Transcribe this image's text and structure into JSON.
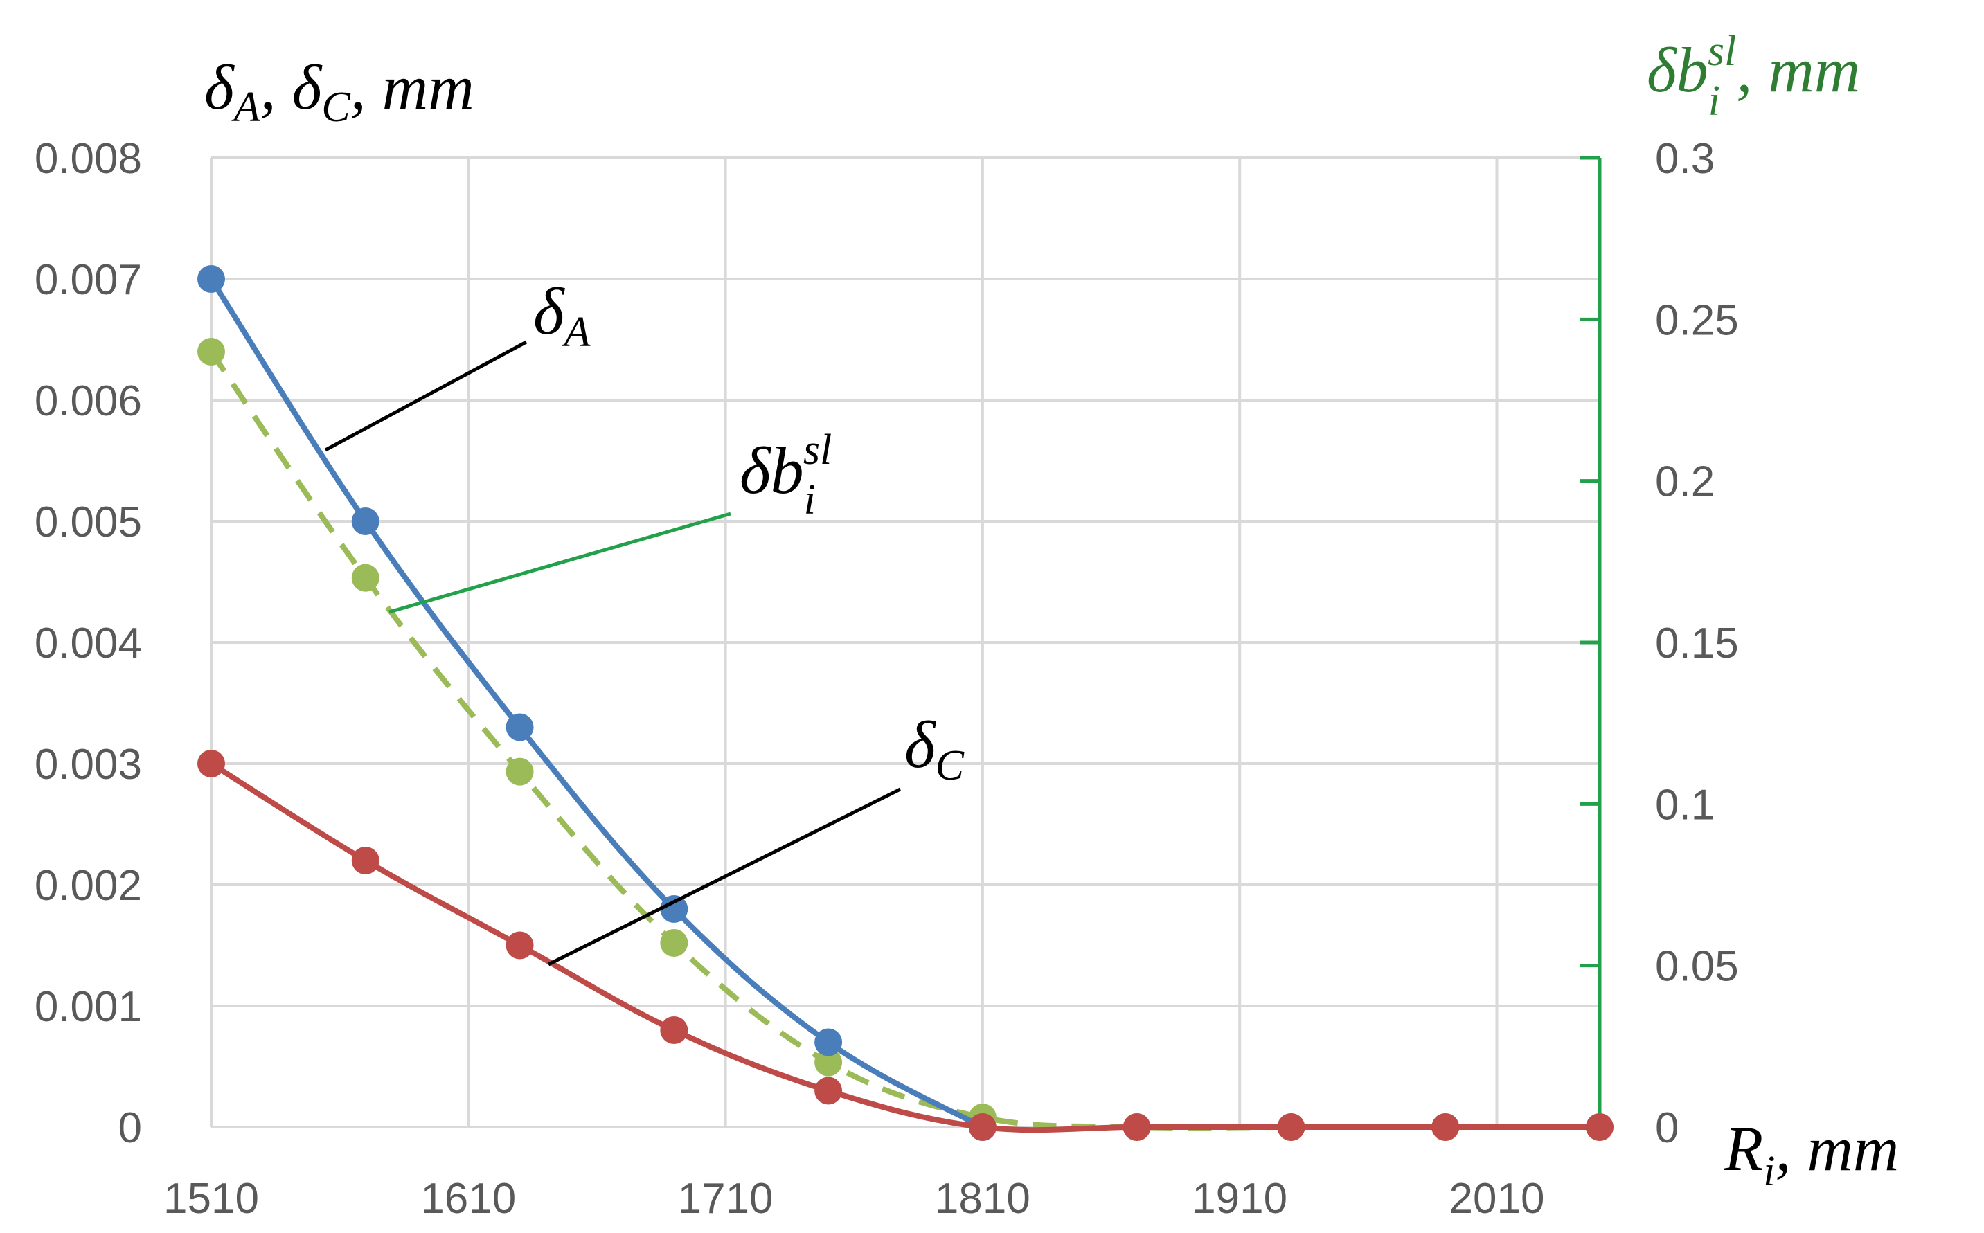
{
  "chart_data": {
    "type": "line",
    "x": [
      1510,
      1570,
      1630,
      1690,
      1750,
      1810,
      1870,
      1930,
      1990,
      2050
    ],
    "xticks": [
      "1510",
      "1610",
      "1710",
      "1810",
      "1910",
      "2010"
    ],
    "xtick_values": [
      1510,
      1610,
      1710,
      1810,
      1910,
      2010
    ],
    "xlim": [
      1510,
      2050
    ],
    "ylim_left": [
      0,
      0.008
    ],
    "yticks_left": [
      "0",
      "0.001",
      "0.002",
      "0.003",
      "0.004",
      "0.005",
      "0.006",
      "0.007",
      "0.008"
    ],
    "ylim_right": [
      0,
      0.3
    ],
    "yticks_right": [
      "0",
      "0.05",
      "0.1",
      "0.15",
      "0.2",
      "0.25",
      "0.3"
    ],
    "xlabel": {
      "main": "R",
      "sub": "i",
      "rest": ", mm"
    },
    "ylabel_left": {
      "d1": "δ",
      "s1": "A",
      "mid": ", ",
      "d2": "δ",
      "s2": "C",
      "rest": ", mm"
    },
    "ylabel_right": {
      "main": "δb",
      "sub": "i",
      "sup": "sl",
      "rest": ", mm"
    },
    "grid": true,
    "series": [
      {
        "name": "δA",
        "axis": "left",
        "color": "#4a7ebb",
        "dash": false,
        "x": [
          1510,
          1570,
          1630,
          1690,
          1750,
          1810
        ],
        "values": [
          0.007,
          0.005,
          0.0033,
          0.0018,
          0.0007,
          0.0
        ]
      },
      {
        "name": "δC",
        "axis": "left",
        "color": "#be4b48",
        "dash": false,
        "x": [
          1510,
          1570,
          1630,
          1690,
          1750,
          1810,
          1870,
          1930,
          1990,
          2050
        ],
        "values": [
          0.003,
          0.0022,
          0.0015,
          0.0008,
          0.0003,
          0.0,
          0.0,
          0.0,
          0.0,
          0.0
        ]
      },
      {
        "name": "δbisl",
        "axis": "right",
        "color": "#9bbb59",
        "dash": true,
        "x": [
          1510,
          1570,
          1630,
          1690,
          1750,
          1810,
          1870,
          1930,
          1990,
          2050
        ],
        "values": [
          0.24,
          0.17,
          0.11,
          0.057,
          0.02,
          0.003,
          0.0,
          0.0,
          0.0,
          0.0
        ]
      }
    ],
    "annotations": {
      "dA": {
        "main": "δ",
        "sub": "A"
      },
      "dC": {
        "main": "δ",
        "sub": "C"
      },
      "db": {
        "main": "δb",
        "sub": "i",
        "sup": "sl"
      }
    }
  }
}
